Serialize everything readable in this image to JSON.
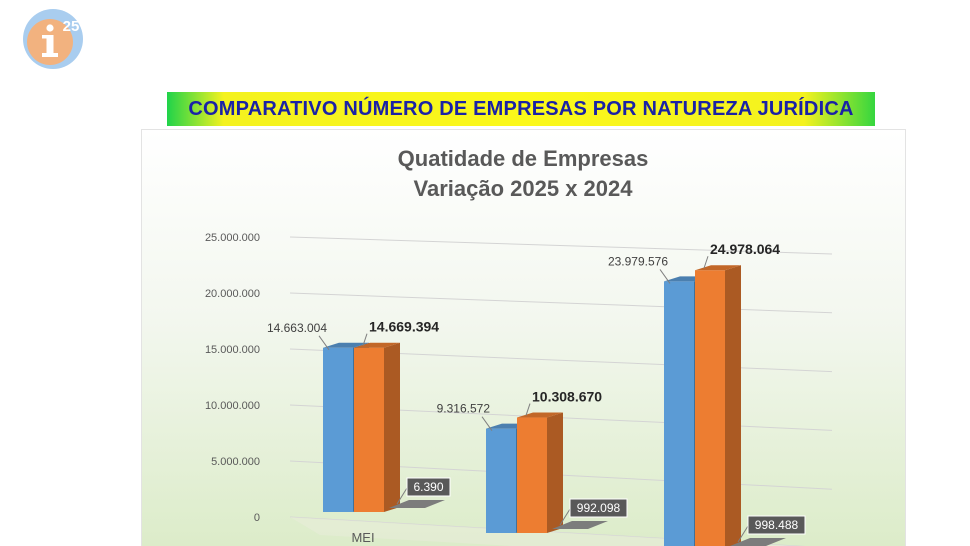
{
  "logo": {
    "icon": "i25-info-logo-icon",
    "text": "25"
  },
  "banner": {
    "title": "COMPARATIVO NÚMERO DE EMPRESAS POR NATUREZA JURÍDICA"
  },
  "chart_data": {
    "type": "bar",
    "title": "Quatidade de Empresas",
    "subtitle": "Variação 2025 x 2024",
    "categories": [
      "MEI",
      "",
      ""
    ],
    "series": [
      {
        "values": [
          14663004,
          9316572,
          23979576
        ],
        "labels": [
          "14.663.004",
          "9.316.572",
          "23.979.576"
        ],
        "color": "#5b9bd5"
      },
      {
        "values": [
          14669394,
          10308670,
          24978064
        ],
        "labels": [
          "14.669.394",
          "10.308.670",
          "24.978.064"
        ],
        "color": "#ed7d31"
      },
      {
        "values": [
          6390,
          992098,
          998488
        ],
        "labels": [
          "6.390",
          "992.098",
          "998.488"
        ],
        "color": "#a5a5a5"
      }
    ],
    "yticks": [
      "0",
      "5.000.000",
      "10.000.000",
      "15.000.000",
      "20.000.000",
      "25.000.000"
    ],
    "ylim": [
      0,
      25000000
    ],
    "grid": true,
    "style": "3d-clustered-column"
  }
}
